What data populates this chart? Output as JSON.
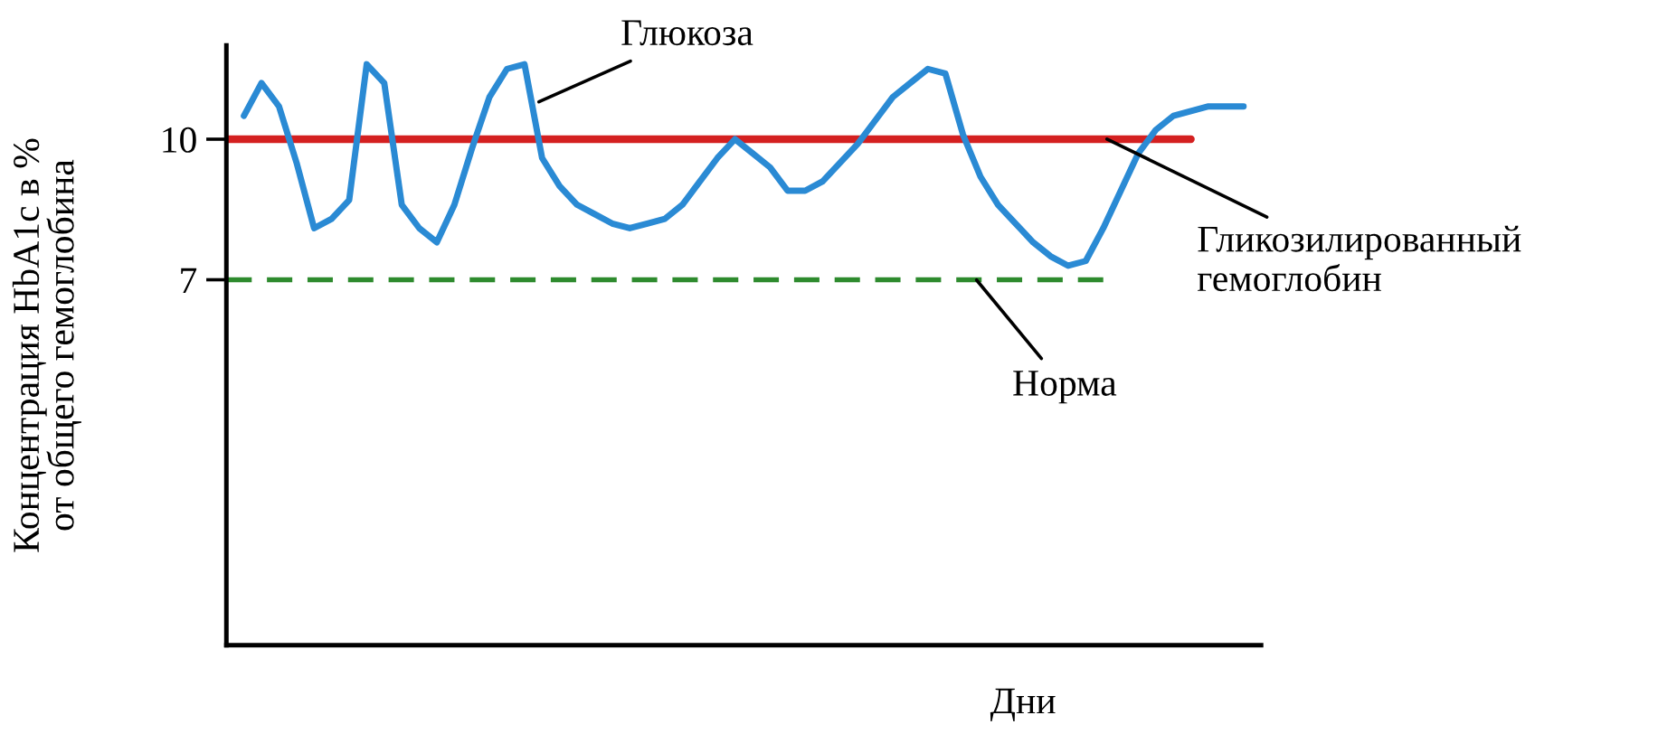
{
  "chart_data": {
    "type": "line",
    "xlabel": "Дни",
    "ylabel": "Концентрация HbA1c в %\nот общего гемоглобина",
    "categories": [
      null,
      null,
      null,
      null,
      null,
      null,
      null,
      null,
      null,
      null,
      null,
      null,
      null,
      null,
      null,
      null,
      null,
      null,
      null,
      null,
      null,
      null,
      null,
      null,
      null,
      null,
      null,
      null,
      null,
      null,
      null,
      null,
      null,
      null,
      null,
      null,
      null,
      null,
      null,
      null,
      null,
      null,
      null,
      null,
      null,
      null,
      null,
      null,
      null,
      null,
      null,
      null,
      null,
      null,
      null,
      null,
      null,
      null,
      null
    ],
    "series": [
      {
        "color": "#2a8ad4",
        "values": [
          null,
          10.5,
          11.2,
          10.7,
          9.5,
          8.1,
          8.3,
          8.7,
          11.6,
          11.2,
          8.6,
          8.1,
          7.8,
          8.6,
          9.8,
          10.9,
          11.5,
          11.6,
          9.6,
          9.0,
          8.6,
          8.4,
          8.2,
          8.1,
          8.2,
          8.3,
          8.6,
          9.1,
          9.6,
          10.0,
          9.7,
          9.4,
          8.9,
          8.9,
          9.1,
          9.5,
          9.9,
          10.4,
          10.9,
          11.2,
          11.5,
          11.4,
          10.1,
          9.2,
          8.6,
          8.2,
          7.8,
          7.5,
          7.3,
          7.4,
          8.1,
          8.9,
          9.7,
          10.2,
          10.5,
          10.6,
          10.7,
          10.7,
          10.7
        ]
      },
      {
        "color": "#d42020",
        "values": [
          10,
          10,
          10,
          10,
          10,
          10,
          10,
          10,
          10,
          10,
          10,
          10,
          10,
          10,
          10,
          10,
          10,
          10,
          10,
          10,
          10,
          10,
          10,
          10,
          10,
          10,
          10,
          10,
          10,
          10,
          10,
          10,
          10,
          10,
          10,
          10,
          10,
          10,
          10,
          10,
          10,
          10,
          10,
          10,
          10,
          10,
          10,
          10,
          10,
          10,
          10,
          10,
          10,
          10,
          10,
          10,
          null,
          null,
          null
        ]
      },
      {
        "color": "#2e8b2e",
        "line_style": "dashed",
        "values": [
          7,
          7,
          7,
          7,
          7,
          7,
          7,
          7,
          7,
          7,
          7,
          7,
          7,
          7,
          7,
          7,
          7,
          7,
          7,
          7,
          7,
          7,
          7,
          7,
          7,
          7,
          7,
          7,
          7,
          7,
          7,
          7,
          7,
          7,
          7,
          7,
          7,
          7,
          7,
          7,
          7,
          7,
          7,
          7,
          7,
          7,
          7,
          7,
          7,
          7,
          7,
          null,
          null,
          null,
          null,
          null,
          null,
          null,
          null
        ]
      }
    ],
    "annotations": [
      "Глюкоза",
      "Гликозилированный\nгемоглобин",
      "Норма"
    ],
    "ylim": [
      -0.8,
      12
    ],
    "yticks": [
      7,
      10
    ],
    "tick_labels": "y",
    "grid": false,
    "legend": false,
    "marker": "none"
  }
}
